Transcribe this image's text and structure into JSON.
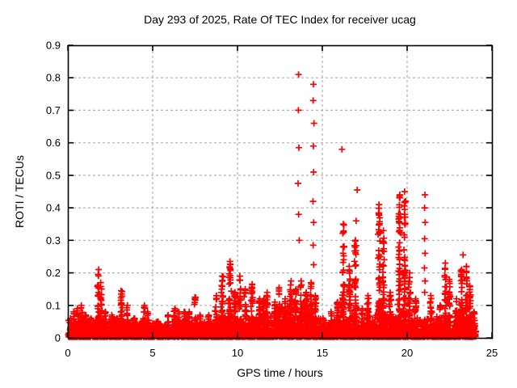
{
  "chart_data": {
    "type": "scatter",
    "title": "Day 293 of 2025, Rate Of TEC Index for receiver ucag",
    "xlabel": "GPS time / hours",
    "ylabel": "ROTI / TECUs",
    "xlim": [
      0,
      25
    ],
    "ylim": [
      0,
      0.9
    ],
    "xticks": [
      [
        0,
        "0"
      ],
      [
        5,
        "5"
      ],
      [
        10,
        "10"
      ],
      [
        15,
        "15"
      ],
      [
        20,
        "20"
      ],
      [
        25,
        "25"
      ]
    ],
    "yticks": [
      [
        0,
        "0"
      ],
      [
        0.1,
        "0.1"
      ],
      [
        0.2,
        "0.2"
      ],
      [
        0.3,
        "0.3"
      ],
      [
        0.4,
        "0.4"
      ],
      [
        0.5,
        "0.5"
      ],
      [
        0.6,
        "0.6"
      ],
      [
        0.7,
        "0.7"
      ],
      [
        0.8,
        "0.8"
      ],
      [
        0.9,
        "0.9"
      ]
    ],
    "grid": true,
    "legend": "none",
    "marker": "plus",
    "colors": {
      "series": "#ff0000",
      "grid": "#b0b0b0",
      "border": "#000000",
      "text": "#000000",
      "background": "#ffffff"
    },
    "t_range": [
      0.03,
      24.05
    ],
    "baseline_envelope": [
      [
        0,
        0.05
      ],
      [
        0.5,
        0.055
      ],
      [
        1.0,
        0.05
      ],
      [
        2.0,
        0.06
      ],
      [
        3.0,
        0.05
      ],
      [
        4.0,
        0.045
      ],
      [
        5.0,
        0.04
      ],
      [
        6.0,
        0.048
      ],
      [
        7.0,
        0.05
      ],
      [
        8.0,
        0.05
      ],
      [
        9.0,
        0.06
      ],
      [
        9.5,
        0.065
      ],
      [
        10.0,
        0.06
      ],
      [
        11.0,
        0.055
      ],
      [
        12.0,
        0.07
      ],
      [
        12.5,
        0.09
      ],
      [
        13.0,
        0.105
      ],
      [
        13.5,
        0.11
      ],
      [
        14.0,
        0.11
      ],
      [
        14.5,
        0.095
      ],
      [
        14.8,
        0.06
      ],
      [
        15.2,
        0.045
      ],
      [
        16.0,
        0.06
      ],
      [
        16.5,
        0.07
      ],
      [
        17.0,
        0.065
      ],
      [
        17.5,
        0.055
      ],
      [
        18.0,
        0.06
      ],
      [
        18.5,
        0.075
      ],
      [
        19.0,
        0.07
      ],
      [
        19.5,
        0.08
      ],
      [
        20.0,
        0.075
      ],
      [
        20.5,
        0.06
      ],
      [
        21.0,
        0.055
      ],
      [
        21.5,
        0.06
      ],
      [
        22.0,
        0.06
      ],
      [
        22.5,
        0.07
      ],
      [
        23.0,
        0.07
      ],
      [
        23.5,
        0.08
      ],
      [
        24.0,
        0.055
      ]
    ],
    "dense_spikes": [
      [
        0.15,
        0.06
      ],
      [
        0.35,
        0.08
      ],
      [
        0.55,
        0.09
      ],
      [
        0.8,
        0.1
      ],
      [
        1.05,
        0.07
      ],
      [
        1.35,
        0.06
      ],
      [
        1.8,
        0.21
      ],
      [
        1.95,
        0.17
      ],
      [
        2.2,
        0.08
      ],
      [
        2.6,
        0.07
      ],
      [
        2.9,
        0.06
      ],
      [
        3.15,
        0.145
      ],
      [
        3.5,
        0.1
      ],
      [
        3.9,
        0.06
      ],
      [
        4.5,
        0.1
      ],
      [
        4.7,
        0.08
      ],
      [
        5.3,
        0.05
      ],
      [
        5.9,
        0.07
      ],
      [
        6.3,
        0.09
      ],
      [
        6.55,
        0.08
      ],
      [
        6.9,
        0.08
      ],
      [
        7.15,
        0.08
      ],
      [
        7.5,
        0.125
      ],
      [
        7.8,
        0.07
      ],
      [
        8.3,
        0.07
      ],
      [
        8.75,
        0.13
      ],
      [
        9.1,
        0.19
      ],
      [
        9.55,
        0.235
      ],
      [
        9.85,
        0.14
      ],
      [
        10.15,
        0.19
      ],
      [
        10.45,
        0.15
      ],
      [
        10.85,
        0.165
      ],
      [
        11.3,
        0.12
      ],
      [
        11.55,
        0.12
      ],
      [
        11.75,
        0.14
      ],
      [
        12.2,
        0.11
      ],
      [
        12.45,
        0.155
      ],
      [
        12.8,
        0.12
      ],
      [
        13.15,
        0.175
      ],
      [
        13.45,
        0.15
      ],
      [
        13.75,
        0.175
      ],
      [
        14.05,
        0.14
      ],
      [
        14.35,
        0.17
      ],
      [
        14.6,
        0.13
      ],
      [
        15.05,
        0.06
      ],
      [
        15.5,
        0.08
      ],
      [
        15.9,
        0.11
      ],
      [
        16.25,
        0.35
      ],
      [
        16.6,
        0.22
      ],
      [
        16.95,
        0.3
      ],
      [
        17.35,
        0.09
      ],
      [
        17.7,
        0.13
      ],
      [
        18.35,
        0.41
      ],
      [
        18.6,
        0.33
      ],
      [
        19.0,
        0.14
      ],
      [
        19.55,
        0.44
      ],
      [
        19.85,
        0.45
      ],
      [
        20.15,
        0.2
      ],
      [
        20.5,
        0.12
      ],
      [
        21.4,
        0.13
      ],
      [
        21.95,
        0.1
      ],
      [
        22.25,
        0.23
      ],
      [
        22.5,
        0.18
      ],
      [
        22.9,
        0.12
      ],
      [
        23.2,
        0.21
      ],
      [
        23.5,
        0.22
      ],
      [
        23.7,
        0.16
      ],
      [
        23.95,
        0.08
      ]
    ],
    "sparse_points": [
      [
        13.6,
        0.81
      ],
      [
        13.6,
        0.7
      ],
      [
        13.62,
        0.585
      ],
      [
        13.58,
        0.475
      ],
      [
        13.6,
        0.38
      ],
      [
        13.63,
        0.3
      ],
      [
        14.48,
        0.78
      ],
      [
        14.46,
        0.73
      ],
      [
        14.5,
        0.66
      ],
      [
        14.47,
        0.59
      ],
      [
        14.49,
        0.51
      ],
      [
        14.46,
        0.42
      ],
      [
        14.5,
        0.355
      ],
      [
        14.47,
        0.285
      ],
      [
        14.49,
        0.225
      ],
      [
        16.15,
        0.58
      ],
      [
        17.05,
        0.455
      ],
      [
        17.0,
        0.36
      ],
      [
        21.05,
        0.44
      ],
      [
        21.03,
        0.4
      ],
      [
        21.07,
        0.355
      ],
      [
        21.04,
        0.305
      ],
      [
        21.06,
        0.26
      ],
      [
        21.03,
        0.215
      ],
      [
        21.06,
        0.175
      ],
      [
        21.04,
        0.14
      ],
      [
        23.3,
        0.255
      ],
      [
        9.55,
        0.235
      ]
    ],
    "render": {
      "seed": 293,
      "baseline_points": 3000
    }
  }
}
